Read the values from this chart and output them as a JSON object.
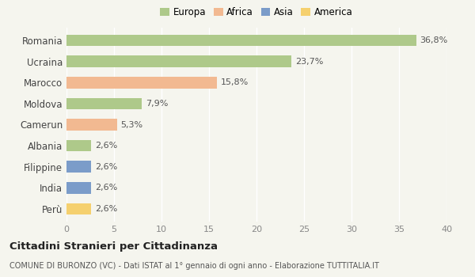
{
  "categories": [
    "Romania",
    "Ucraina",
    "Marocco",
    "Moldova",
    "Camerun",
    "Albania",
    "Filippine",
    "India",
    "Perù"
  ],
  "values": [
    36.8,
    23.7,
    15.8,
    7.9,
    5.3,
    2.6,
    2.6,
    2.6,
    2.6
  ],
  "labels": [
    "36,8%",
    "23,7%",
    "15,8%",
    "7,9%",
    "5,3%",
    "2,6%",
    "2,6%",
    "2,6%",
    "2,6%"
  ],
  "colors": [
    "#aec98a",
    "#aec98a",
    "#f2b991",
    "#aec98a",
    "#f2b991",
    "#aec98a",
    "#7b9cc9",
    "#7b9cc9",
    "#f5d06e"
  ],
  "legend_labels": [
    "Europa",
    "Africa",
    "Asia",
    "America"
  ],
  "legend_colors": [
    "#aec98a",
    "#f2b991",
    "#7b9cc9",
    "#f5d06e"
  ],
  "xlim": [
    0,
    40
  ],
  "xticks": [
    0,
    5,
    10,
    15,
    20,
    25,
    30,
    35,
    40
  ],
  "title": "Cittadini Stranieri per Cittadinanza",
  "subtitle": "COMUNE DI BURONZO (VC) - Dati ISTAT al 1° gennaio di ogni anno - Elaborazione TUTTITALIA.IT",
  "bg_color": "#f5f5ee",
  "grid_color": "#ffffff",
  "bar_height": 0.55
}
